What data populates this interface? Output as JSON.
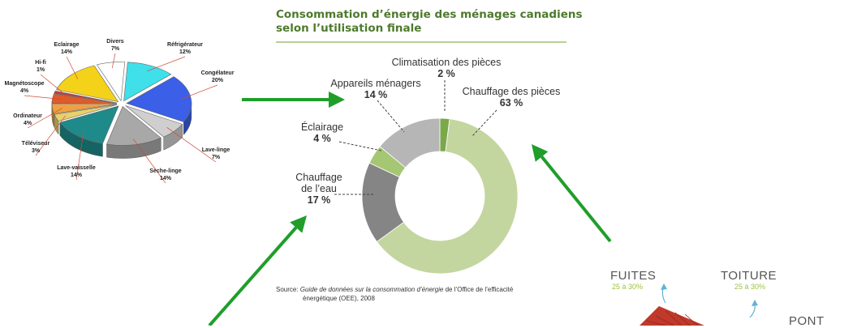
{
  "chart_data": [
    {
      "type": "pie",
      "style": "3d-exploded",
      "slices": [
        {
          "label": "Réfrigérateur",
          "value": 12,
          "value_label": "12%",
          "color": "#3fe0ea"
        },
        {
          "label": "Congélateur",
          "value": 20,
          "value_label": "20%",
          "color": "#3b5fe6"
        },
        {
          "label": "Lave-linge",
          "value": 7,
          "value_label": "7%",
          "color": "#cfcfcf"
        },
        {
          "label": "Sèche-linge",
          "value": 14,
          "value_label": "14%",
          "color": "#a8a8a8"
        },
        {
          "label": "Lave-vaisselle",
          "value": 14,
          "value_label": "14%",
          "color": "#1f8a8a"
        },
        {
          "label": "Téléviseur",
          "value": 3,
          "value_label": "3%",
          "color": "#e8d06a"
        },
        {
          "label": "Ordinateur",
          "value": 4,
          "value_label": "4%",
          "color": "#f0a040"
        },
        {
          "label": "Magnétoscope",
          "value": 4,
          "value_label": "4%",
          "color": "#e05a2a"
        },
        {
          "label": "Hi-fi",
          "value": 1,
          "value_label": "1%",
          "color": "#c63a3a"
        },
        {
          "label": "Eclairage",
          "value": 14,
          "value_label": "14%",
          "color": "#f5d21a"
        },
        {
          "label": "Divers",
          "value": 7,
          "value_label": "7%",
          "color": "#ffffff"
        }
      ]
    },
    {
      "type": "pie",
      "style": "donut",
      "title": "Consommation d’énergie des ménages canadiens selon l’utilisation finale",
      "title_lines": [
        "Consommation d’énergie des ménages canadiens",
        "selon l’utilisation finale"
      ],
      "slices": [
        {
          "label_lines": [
            "Climatisation des pièces"
          ],
          "value": 2,
          "value_label": "2 %",
          "color": "#7aa84a"
        },
        {
          "label_lines": [
            "Chauffage des pièces"
          ],
          "value": 63,
          "value_label": "63 %",
          "color": "#c4d6a0"
        },
        {
          "label_lines": [
            "Chauffage",
            "de l’eau"
          ],
          "value": 17,
          "value_label": "17 %",
          "color": "#858585"
        },
        {
          "label_lines": [
            "Éclairage"
          ],
          "value": 4,
          "value_label": "4 %",
          "color": "#a5c672"
        },
        {
          "label_lines": [
            "Appareils ménagers"
          ],
          "value": 14,
          "value_label": "14 %",
          "color": "#b6b6b6"
        }
      ],
      "source": {
        "prefix": "Source: ",
        "italic": "Guide de données sur la consommation d’énergie",
        "suffix": " de l’Office de l’efficacité",
        "line2": "énergétique (OEE), 2008"
      }
    }
  ],
  "house_panel": {
    "items": [
      {
        "title": "FUITES",
        "sub": "25 à 30%"
      },
      {
        "title": "TOITURE",
        "sub": "25 à 30%"
      },
      {
        "title": "PONT",
        "sub": ""
      }
    ],
    "colors": {
      "arrow": "#5fb3d6",
      "roof": "#c0392b",
      "accent": "#9bc33a"
    }
  },
  "colors": {
    "arrow": "#1f9e2a",
    "title": "#4d7a2c"
  }
}
